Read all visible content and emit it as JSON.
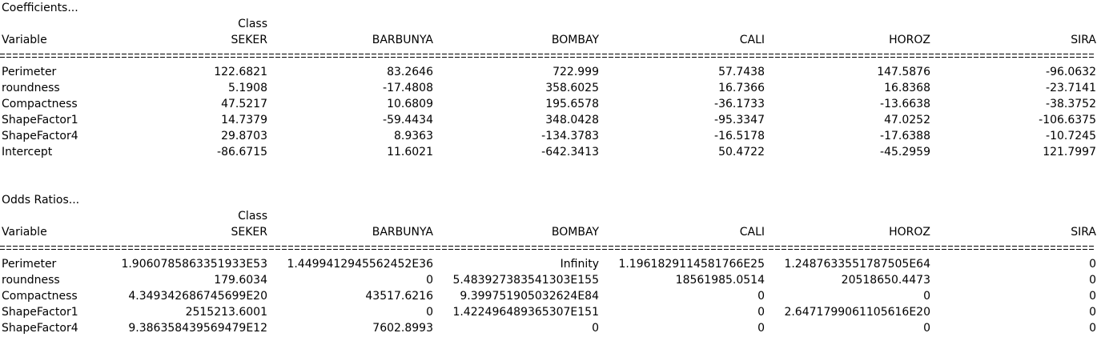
{
  "sections": [
    {
      "title": "Coefficients...",
      "class_label": "Class",
      "variable_label": "Variable",
      "columns": [
        "SEKER",
        "BARBUNYA",
        "BOMBAY",
        "CALI",
        "HOROZ",
        "SIRA"
      ],
      "rows": [
        {
          "variable": "Perimeter",
          "values": [
            "122.6821",
            "83.2646",
            "722.999",
            "57.7438",
            "147.5876",
            "-96.0632"
          ]
        },
        {
          "variable": "roundness",
          "values": [
            "5.1908",
            "-17.4808",
            "358.6025",
            "16.7366",
            "16.8368",
            "-23.7141"
          ]
        },
        {
          "variable": "Compactness",
          "values": [
            "47.5217",
            "10.6809",
            "195.6578",
            "-36.1733",
            "-13.6638",
            "-38.3752"
          ]
        },
        {
          "variable": "ShapeFactor1",
          "values": [
            "14.7379",
            "-59.4434",
            "348.0428",
            "-95.3347",
            "47.0252",
            "-106.6375"
          ]
        },
        {
          "variable": "ShapeFactor4",
          "values": [
            "29.8703",
            "8.9363",
            "-134.3783",
            "-16.5178",
            "-17.6388",
            "-10.7245"
          ]
        },
        {
          "variable": "Intercept",
          "values": [
            "-86.6715",
            "11.6021",
            "-642.3413",
            "50.4722",
            "-45.2959",
            "121.7997"
          ]
        }
      ]
    },
    {
      "title": "Odds Ratios...",
      "class_label": "Class",
      "variable_label": "Variable",
      "columns": [
        "SEKER",
        "BARBUNYA",
        "BOMBAY",
        "CALI",
        "HOROZ",
        "SIRA"
      ],
      "rows": [
        {
          "variable": "Perimeter",
          "values": [
            "1.9060785863351933E53",
            "1.4499412945562452E36",
            "Infinity",
            "1.1961829114581766E25",
            "1.2487633551787505E64",
            "0"
          ]
        },
        {
          "variable": "roundness",
          "values": [
            "179.6034",
            "0",
            "5.483927383541303E155",
            "18561985.0514",
            "20518650.4473",
            "0"
          ]
        },
        {
          "variable": "Compactness",
          "values": [
            "4.349342686745699E20",
            "43517.6216",
            "9.399751905032624E84",
            "0",
            "0",
            "0"
          ]
        },
        {
          "variable": "ShapeFactor1",
          "values": [
            "2515213.6001",
            "0",
            "1.422496489365307E151",
            "0",
            "2.6471799061105616E20",
            "0"
          ]
        },
        {
          "variable": "ShapeFactor4",
          "values": [
            "9.386358439569479E12",
            "7602.8993",
            "0",
            "0",
            "0",
            "0"
          ]
        }
      ]
    }
  ]
}
